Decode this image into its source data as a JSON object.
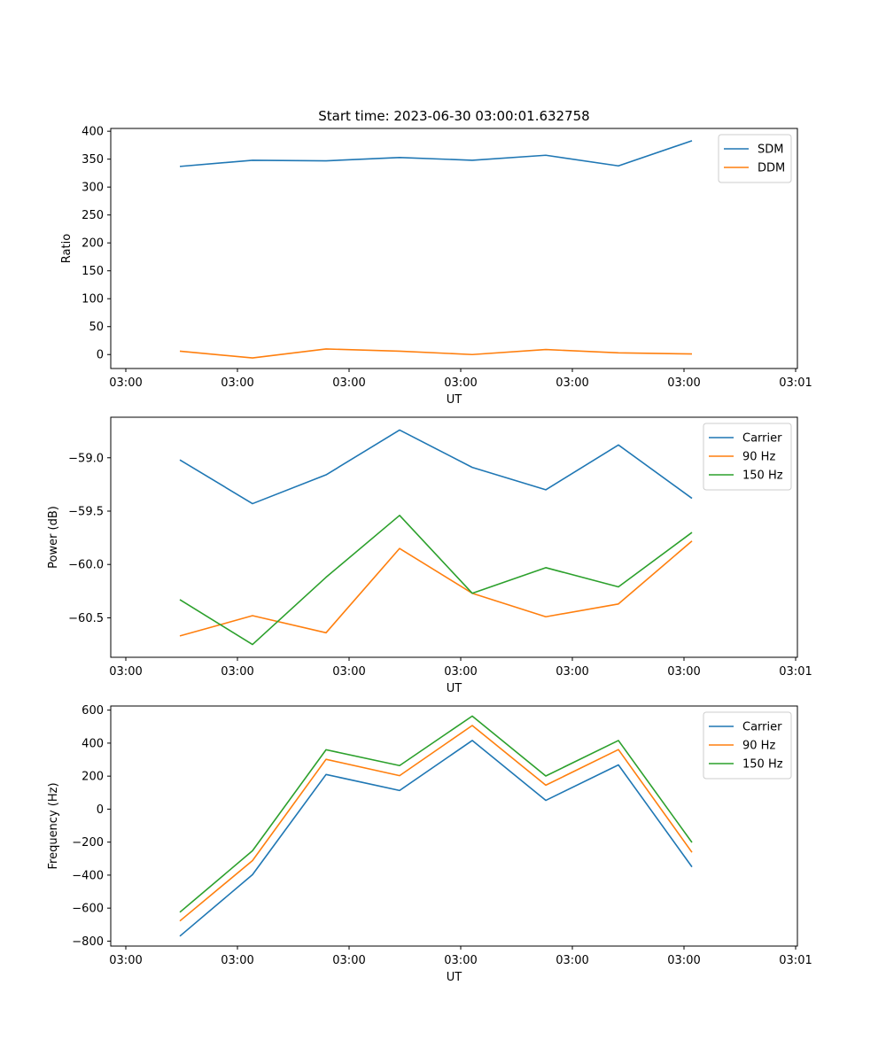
{
  "figure": {
    "title": "Start time: 2023-06-30 03:00:01.632758"
  },
  "chart_data": [
    {
      "type": "line",
      "title": "",
      "xlabel": "UT",
      "ylabel": "Ratio",
      "x_tick_labels": [
        "03:00",
        "03:00",
        "03:00",
        "03:00",
        "03:00",
        "03:00",
        "03:01"
      ],
      "y_ticks": [
        0,
        50,
        100,
        150,
        200,
        250,
        300,
        350,
        400
      ],
      "ylim": [
        -25,
        405
      ],
      "grid": false,
      "legend_position": "upper right",
      "series": [
        {
          "name": "SDM",
          "color": "#1f77b4",
          "values": [
            337,
            348,
            347,
            353,
            348,
            357,
            338,
            383
          ]
        },
        {
          "name": "DDM",
          "color": "#ff7f0e",
          "values": [
            6,
            -6,
            10,
            6,
            0,
            9,
            3,
            1
          ]
        }
      ]
    },
    {
      "type": "line",
      "title": "",
      "xlabel": "UT",
      "ylabel": "Power (dB)",
      "x_tick_labels": [
        "03:00",
        "03:00",
        "03:00",
        "03:00",
        "03:00",
        "03:00",
        "03:01"
      ],
      "y_ticks": [
        -60.5,
        -60.0,
        -59.5,
        -59.0
      ],
      "y_tick_labels": [
        "−60.5",
        "−60.0",
        "−59.5",
        "−59.0"
      ],
      "ylim": [
        -60.87,
        -58.62
      ],
      "grid": false,
      "legend_position": "upper right",
      "series": [
        {
          "name": "Carrier",
          "color": "#1f77b4",
          "values": [
            -59.02,
            -59.43,
            -59.16,
            -58.74,
            -59.09,
            -59.3,
            -58.88,
            -59.38
          ]
        },
        {
          "name": "90 Hz",
          "color": "#ff7f0e",
          "values": [
            -60.67,
            -60.48,
            -60.64,
            -59.85,
            -60.27,
            -60.49,
            -60.37,
            -59.78
          ]
        },
        {
          "name": "150 Hz",
          "color": "#2ca02c",
          "values": [
            -60.33,
            -60.75,
            -60.12,
            -59.54,
            -60.27,
            -60.03,
            -60.21,
            -59.7
          ]
        }
      ]
    },
    {
      "type": "line",
      "title": "",
      "xlabel": "UT",
      "ylabel": "Frequency (Hz)",
      "x_tick_labels": [
        "03:00",
        "03:00",
        "03:00",
        "03:00",
        "03:00",
        "03:00",
        "03:01"
      ],
      "y_ticks": [
        -800,
        -600,
        -400,
        -200,
        0,
        200,
        400,
        600
      ],
      "y_tick_labels": [
        "−800",
        "−600",
        "−400",
        "−200",
        "0",
        "200",
        "400",
        "600"
      ],
      "ylim": [
        -830,
        625
      ],
      "grid": false,
      "legend_position": "upper right",
      "series": [
        {
          "name": "Carrier",
          "color": "#1f77b4",
          "values": [
            -770,
            -397,
            210,
            113,
            416,
            53,
            268,
            -350
          ]
        },
        {
          "name": "90 Hz",
          "color": "#ff7f0e",
          "values": [
            -678,
            -312,
            302,
            203,
            507,
            145,
            361,
            -262
          ]
        },
        {
          "name": "150 Hz",
          "color": "#2ca02c",
          "values": [
            -625,
            -252,
            360,
            264,
            564,
            201,
            416,
            -202
          ]
        }
      ]
    }
  ]
}
